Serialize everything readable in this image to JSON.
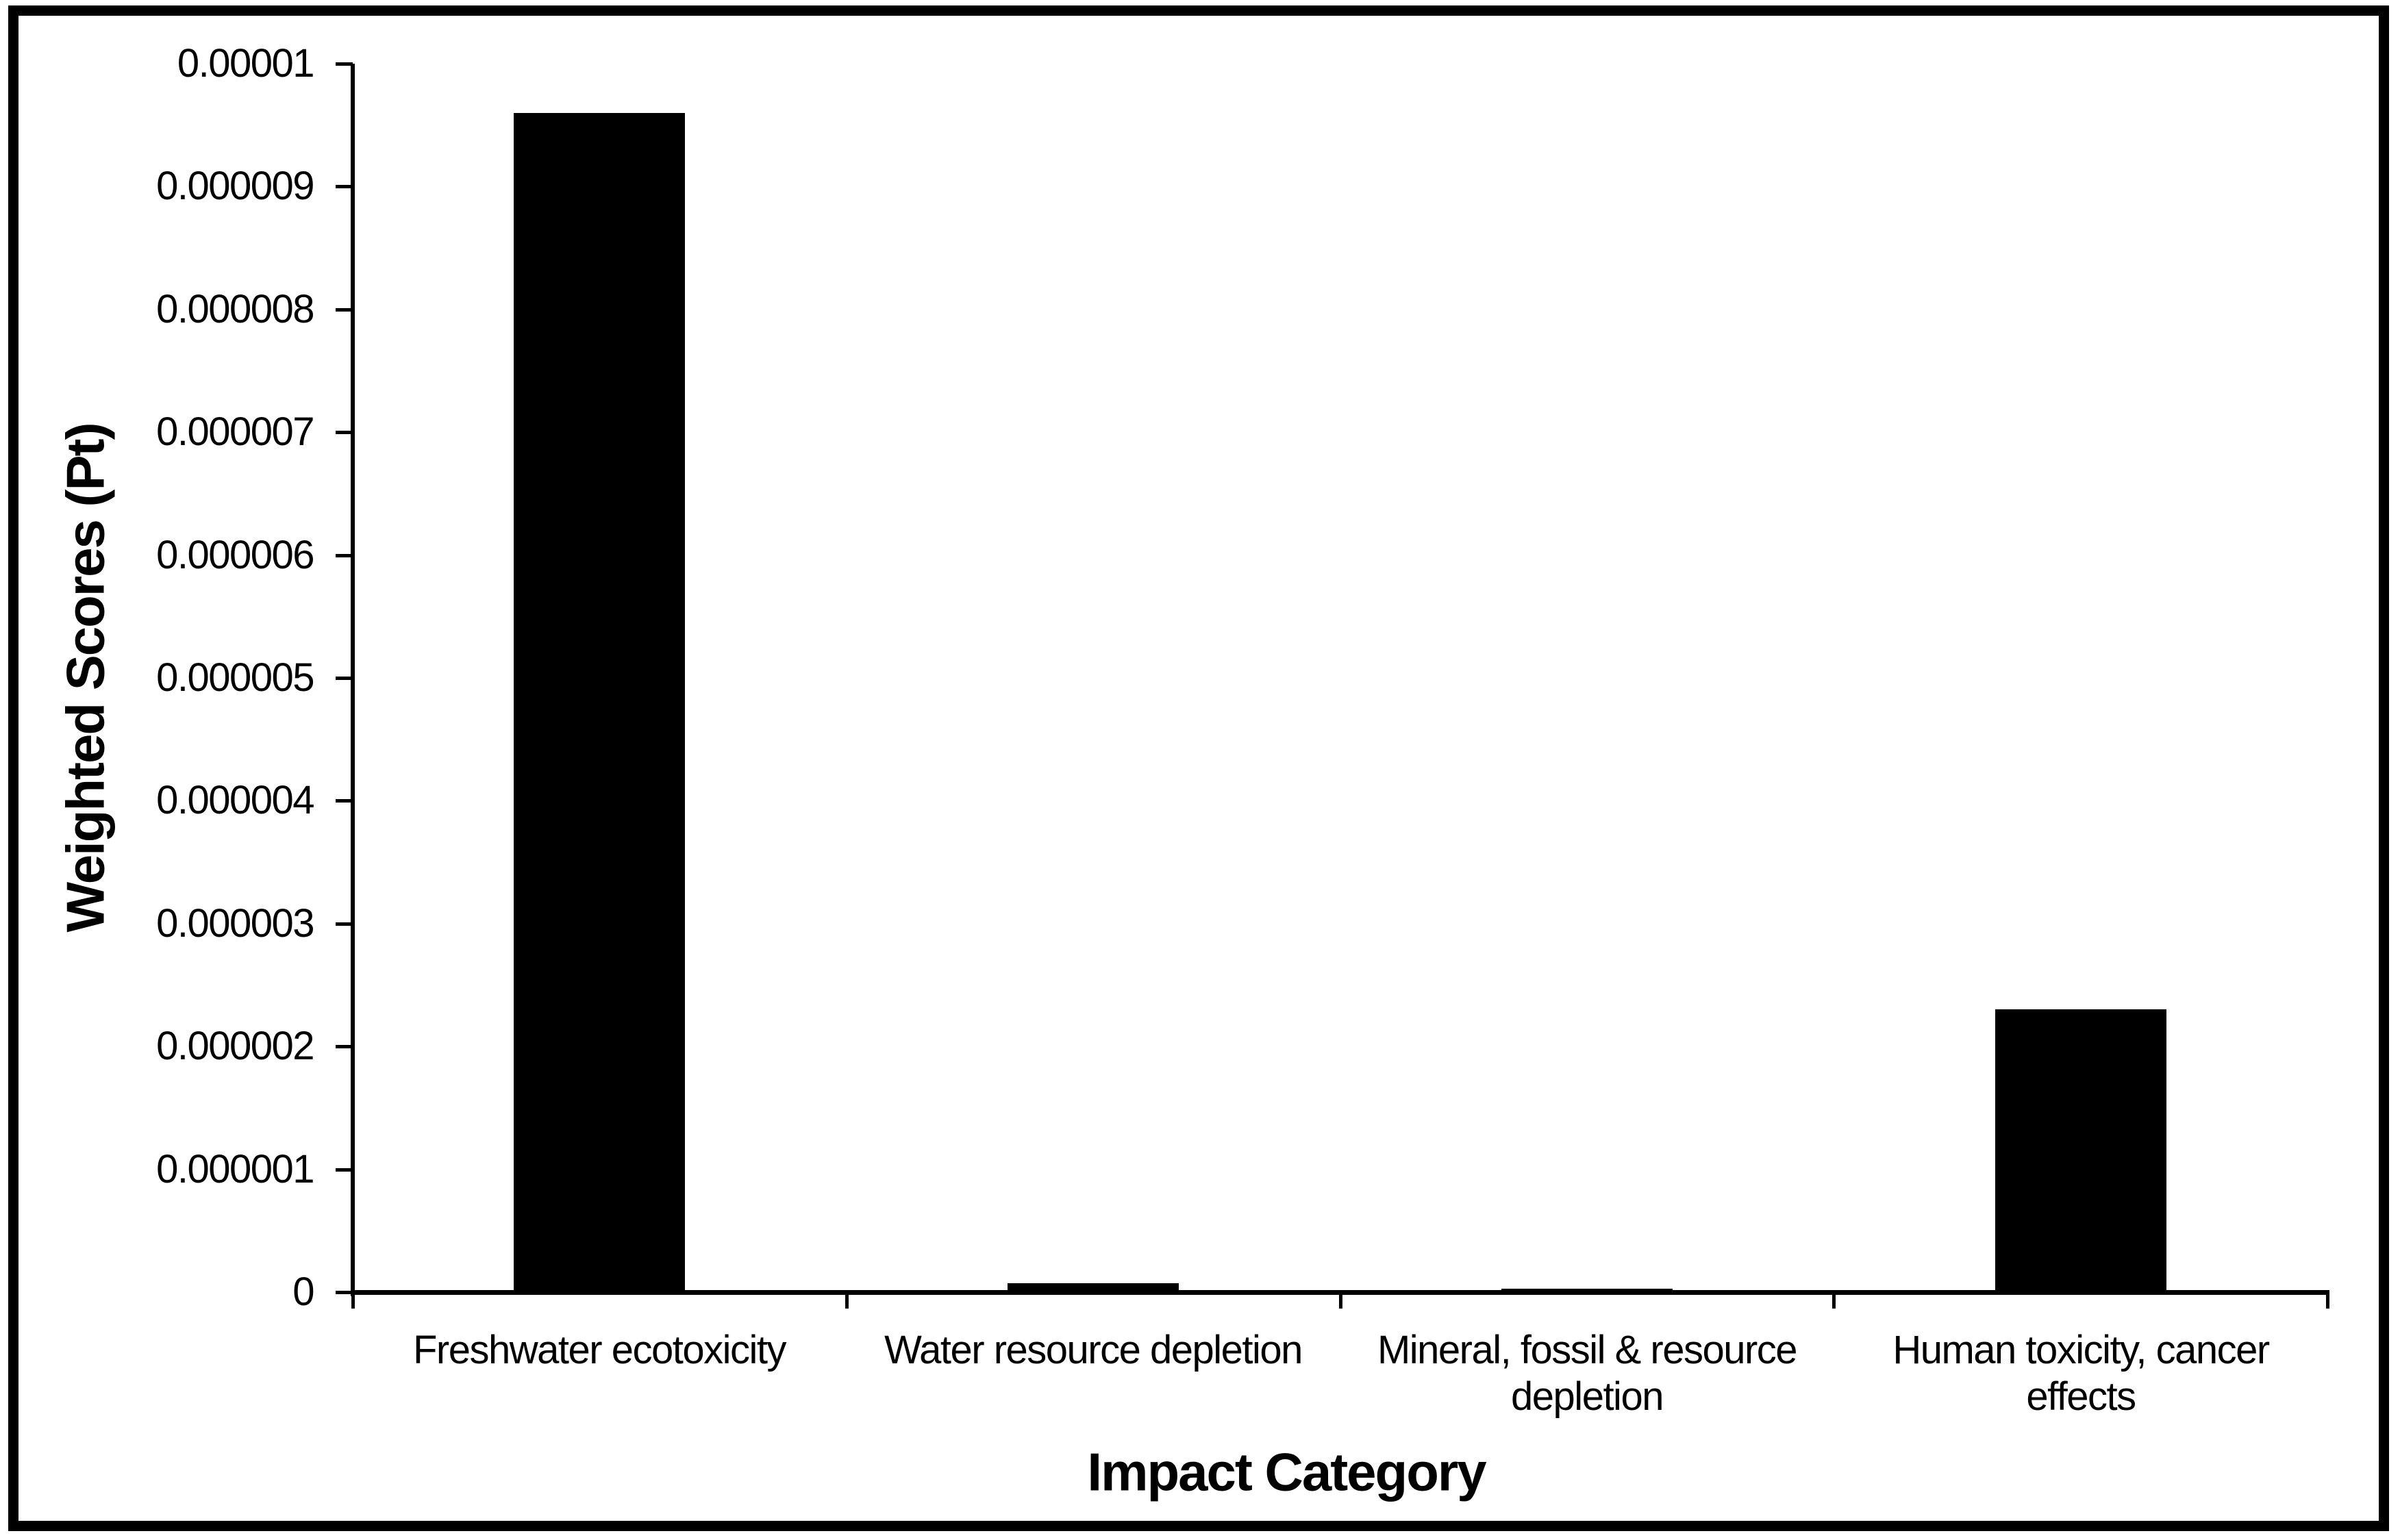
{
  "figure": {
    "background_color": "#ffffff",
    "border_color": "#000000"
  },
  "chart_data": {
    "type": "bar",
    "title": "",
    "xlabel": "Impact Category",
    "ylabel": "Weighted Scores (Pt)",
    "categories": [
      "Freshwater ecotoxicity",
      "Water resource depletion",
      "Mineral, fossil & resource depletion",
      "Human toxicity, cancer effects"
    ],
    "values": [
      9.6e-06,
      7e-08,
      2.8e-08,
      2.3e-06
    ],
    "bar_color": "#000000",
    "ylim": [
      0,
      1e-05
    ],
    "ytick_step": 1e-06,
    "ytick_labels": [
      "0",
      "0.000001",
      "0.000002",
      "0.000003",
      "0.000004",
      "0.000005",
      "0.000006",
      "0.000007",
      "0.000008",
      "0.000009",
      "0.00001"
    ],
    "grid": "off",
    "legend": "none"
  }
}
